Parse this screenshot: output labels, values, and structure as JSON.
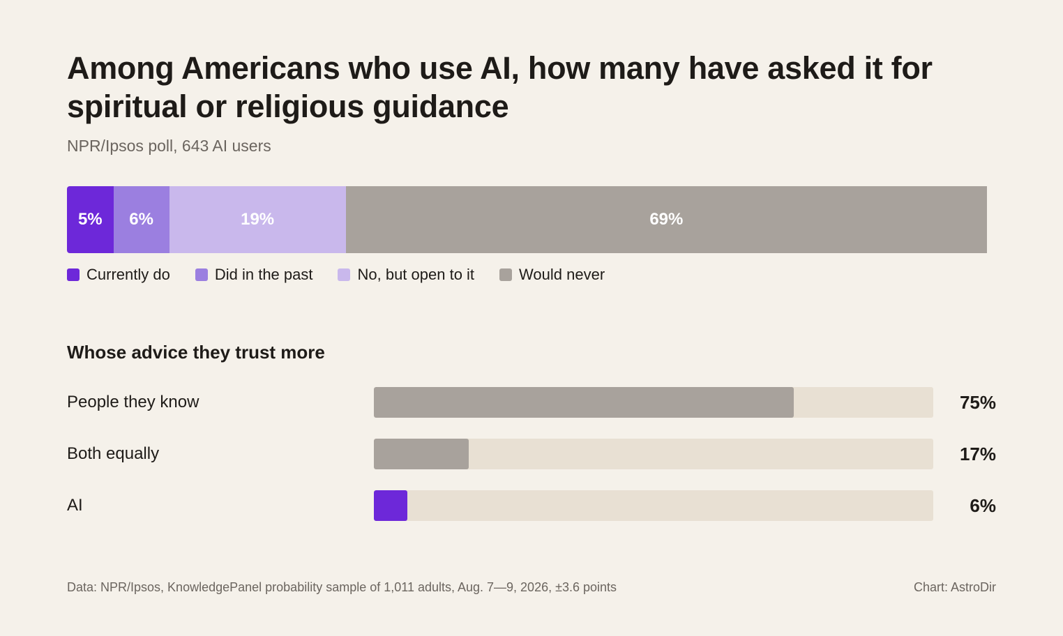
{
  "title": "Among Americans who use AI, how many have asked it for spiritual or religious guidance",
  "subtitle": "NPR/Ipsos poll, 643 AI users",
  "colors": {
    "background": "#f5f1ea",
    "currently_do": "#6d28d9",
    "did_in_past": "#9b7fe0",
    "open_to_it": "#c9b8ec",
    "would_never": "#a8a29c",
    "track": "#e8e0d3",
    "ai_fill": "#6d28d9",
    "people_fill": "#a8a29c"
  },
  "chart_data": [
    {
      "type": "bar",
      "orientation": "horizontal-stacked",
      "series": [
        {
          "name": "Currently do",
          "value": 5,
          "label": "5%",
          "color": "#6d28d9"
        },
        {
          "name": "Did in the past",
          "value": 6,
          "label": "6%",
          "color": "#9b7fe0"
        },
        {
          "name": "No, but open to it",
          "value": 19,
          "label": "19%",
          "color": "#c9b8ec"
        },
        {
          "name": "Would never",
          "value": 69,
          "label": "69%",
          "color": "#a8a29c"
        }
      ],
      "legend": "bottom-left"
    },
    {
      "type": "bar",
      "orientation": "horizontal",
      "title": "Whose advice they trust more",
      "categories": [
        "People they know",
        "Both equally",
        "AI"
      ],
      "values": [
        75,
        17,
        6
      ],
      "labels": [
        "75%",
        "17%",
        "6%"
      ],
      "colors": [
        "#a8a29c",
        "#a8a29c",
        "#6d28d9"
      ],
      "xlim": [
        0,
        100
      ]
    }
  ],
  "footer": {
    "source": "Data: NPR/Ipsos, KnowledgePanel probability sample of 1,011 adults, Aug. 7—9, 2026, ±3.6 points",
    "credit": "Chart: AstroDir"
  }
}
